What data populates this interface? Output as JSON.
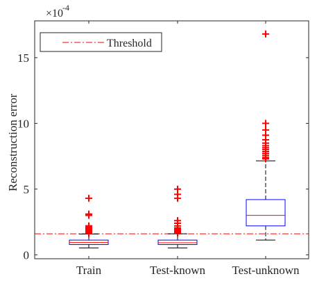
{
  "chart_data": {
    "type": "box",
    "title": "",
    "xlabel": "",
    "ylabel": "Reconstruction error",
    "y_exponent_label": "×10",
    "y_exponent_value": "-4",
    "ylim": [
      -0.3,
      17.8
    ],
    "yticks": [
      0,
      5,
      10,
      15
    ],
    "ytick_labels": [
      "0",
      "5",
      "10",
      "15"
    ],
    "grid": false,
    "legend_position": "top-left",
    "threshold": {
      "label": "Threshold",
      "value": 1.6,
      "color": "#ff3333",
      "style": "dash-dot"
    },
    "colors": {
      "box": "#0000ff",
      "median": "#ff0000",
      "whisker": "#000000",
      "outlier": "#ff0000"
    },
    "categories": [
      "Train",
      "Test-known",
      "Test-unknown"
    ],
    "boxes": [
      {
        "category": "Train",
        "whisker_low": 0.52,
        "q1": 0.78,
        "median": 0.94,
        "q3": 1.12,
        "whisker_high": 1.58,
        "outliers": [
          1.62,
          1.68,
          1.72,
          1.78,
          1.85,
          1.92,
          2.0,
          2.1,
          2.2,
          3.0,
          3.1,
          4.3
        ]
      },
      {
        "category": "Test-known",
        "whisker_low": 0.52,
        "q1": 0.78,
        "median": 0.92,
        "q3": 1.12,
        "whisker_high": 1.6,
        "outliers": [
          1.65,
          1.7,
          1.75,
          1.8,
          1.85,
          1.95,
          2.05,
          2.2,
          2.4,
          2.6,
          4.3,
          4.6,
          5.0
        ]
      },
      {
        "category": "Test-unknown",
        "whisker_low": 1.12,
        "q1": 2.2,
        "median": 3.0,
        "q3": 4.2,
        "whisker_high": 7.15,
        "outliers": [
          7.3,
          7.4,
          7.55,
          7.7,
          7.85,
          8.0,
          8.15,
          8.3,
          8.5,
          8.75,
          9.1,
          9.5,
          10.0,
          16.8
        ]
      }
    ]
  }
}
